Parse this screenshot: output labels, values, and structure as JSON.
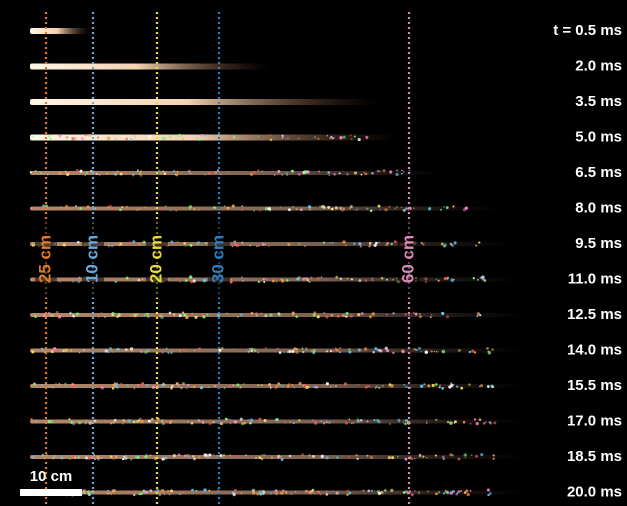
{
  "time_labels": [
    "t = 0.5 ms",
    "2.0 ms",
    "3.5 ms",
    "5.0 ms",
    "6.5 ms",
    "8.0 ms",
    "9.5 ms",
    "11.0 ms",
    "12.5 ms",
    "14.0 ms",
    "15.5 ms",
    "17.0 ms",
    "18.5 ms",
    "20.0 ms"
  ],
  "markers": [
    {
      "label": "25 cm",
      "color": "#e07a2e"
    },
    {
      "label": "10 cm",
      "color": "#6aa9dc"
    },
    {
      "label": "20 cm",
      "color": "#e8dc3a"
    },
    {
      "label": "30 cm",
      "color": "#2f7fc0"
    },
    {
      "label": "60 cm",
      "color": "#d98bb8"
    }
  ],
  "scale_bar": {
    "label": "10 cm"
  }
}
